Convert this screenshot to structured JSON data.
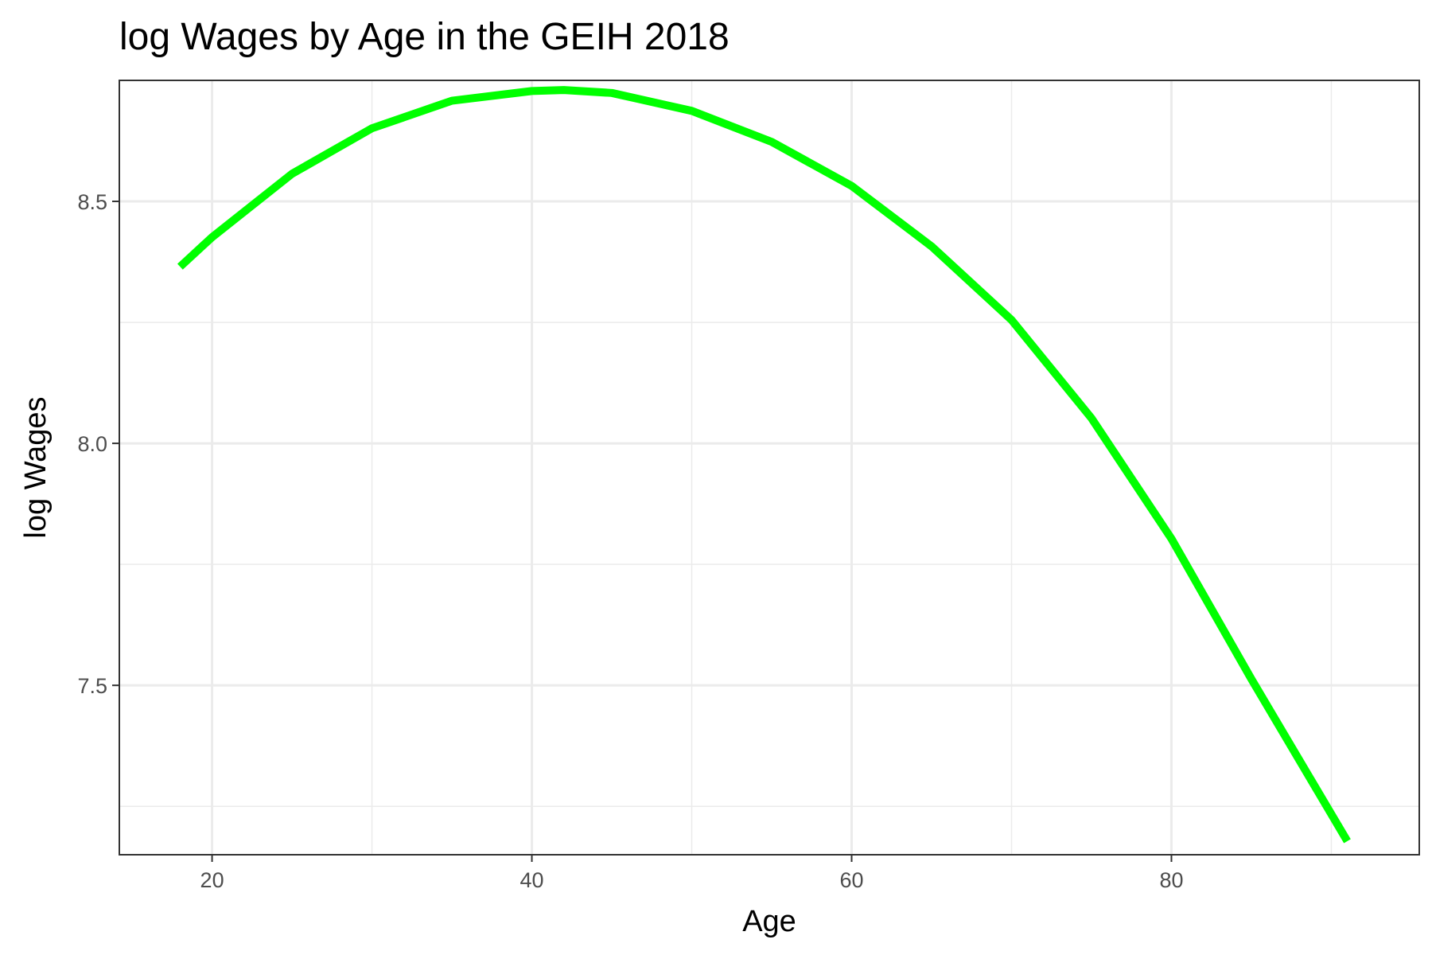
{
  "chart_data": {
    "type": "line",
    "title": "log Wages by Age in the GEIH 2018",
    "xlabel": "Age",
    "ylabel": "log Wages",
    "xlim": [
      14.2,
      95.5
    ],
    "ylim": [
      7.15,
      8.75
    ],
    "x_ticks": [
      20,
      40,
      60,
      80
    ],
    "x_minor_ticks": [
      30,
      50,
      70,
      90
    ],
    "y_ticks": [
      7.5,
      8.0,
      8.5
    ],
    "y_minor_ticks": [
      7.25,
      7.75,
      8.25,
      8.75
    ],
    "x_tick_labels": [
      "20",
      "40",
      "60",
      "80"
    ],
    "y_tick_labels": [
      "7.5",
      "8.0",
      "8.5"
    ],
    "grid": true,
    "legend": "none",
    "series": [
      {
        "color": "#00ff00",
        "x": [
          18,
          20,
          25,
          30,
          35,
          40,
          42,
          45,
          50,
          55,
          60,
          65,
          70,
          75,
          80,
          85,
          91
        ],
        "y": [
          8.365,
          8.426,
          8.557,
          8.651,
          8.708,
          8.728,
          8.73,
          8.724,
          8.687,
          8.623,
          8.532,
          8.407,
          8.255,
          8.052,
          7.803,
          7.513,
          7.178
        ]
      }
    ]
  }
}
